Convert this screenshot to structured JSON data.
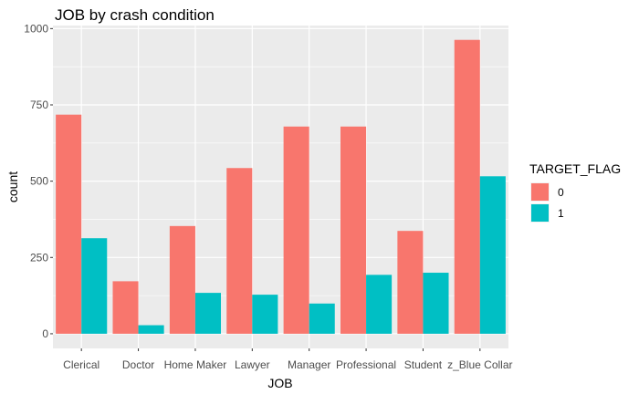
{
  "chart_data": {
    "type": "bar",
    "title": "JOB by crash condition",
    "xlabel": "JOB",
    "ylabel": "count",
    "categories": [
      "Clerical",
      "Doctor",
      "Home Maker",
      "Lawyer",
      "Manager",
      "Professional",
      "Student",
      "z_Blue Collar"
    ],
    "series": [
      {
        "name": "0",
        "color": "#F8766D",
        "values": [
          718,
          172,
          353,
          543,
          679,
          679,
          337,
          963
        ]
      },
      {
        "name": "1",
        "color": "#00BFC4",
        "values": [
          313,
          28,
          134,
          128,
          99,
          193,
          200,
          516
        ]
      }
    ],
    "ylim": [
      -48,
      1010
    ],
    "yticks": [
      0,
      250,
      500,
      750,
      1000
    ],
    "legend": {
      "title": "TARGET_FLAG",
      "placement": "right"
    },
    "grid": true,
    "panel_background": "#EBEBEB"
  }
}
